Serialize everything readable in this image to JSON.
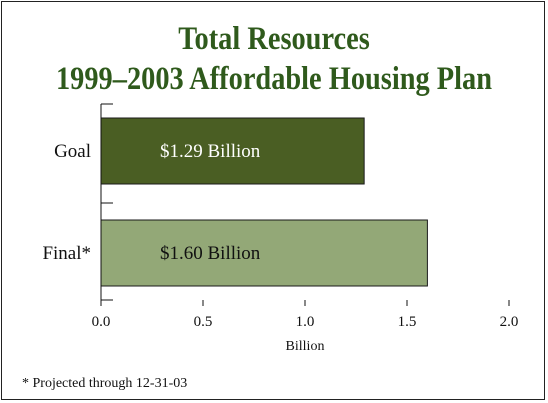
{
  "chart_data": {
    "type": "bar",
    "orientation": "horizontal",
    "title": [
      "Total Resources",
      "1999–2003 Affordable Housing Plan"
    ],
    "categories": [
      "Goal",
      "Final*"
    ],
    "values": [
      1.29,
      1.6
    ],
    "data_labels": [
      "$1.29 Billion",
      "$1.60 Billion"
    ],
    "bar_colors": [
      "#4a5e23",
      "#93a877"
    ],
    "xlabel": "Billion",
    "xlim": [
      0,
      2.0
    ],
    "xticks": [
      "0.0",
      "0.5",
      "1.0",
      "1.5",
      "2.0"
    ],
    "grid": false
  },
  "footnote": "* Projected through 12-31-03",
  "colors": {
    "title": "#2f5a1c"
  }
}
